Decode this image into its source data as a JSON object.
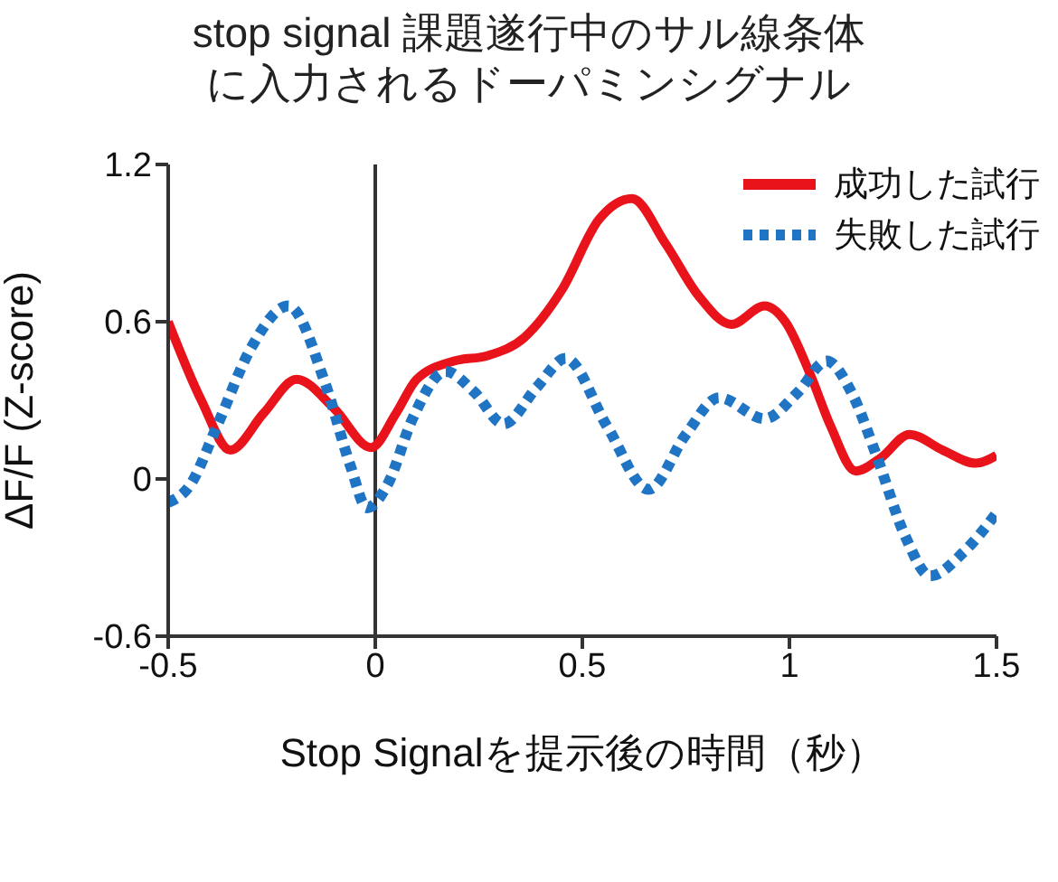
{
  "chart_data": {
    "type": "line",
    "title": "stop signal 課題遂行中のサル線条体に入力されるドーパミンシグナル",
    "xlabel": "Stop Signalを提示後の時間（秒）",
    "ylabel": "ΔF/F (Z-score)",
    "xlim": [
      -0.5,
      1.5
    ],
    "xticks": [
      -0.5,
      0,
      0.5,
      1,
      1.5
    ],
    "ylim": [
      -0.6,
      1.2
    ],
    "yticks": [
      -0.6,
      0,
      0.6,
      1.2
    ],
    "grid": false,
    "legend": "top right",
    "marker": "none",
    "ref_lines": [
      {
        "axis": "x",
        "value": 0,
        "color": "#333333"
      }
    ],
    "series": [
      {
        "name": "成功した試行",
        "color": "#e8131b",
        "line_style": "solid",
        "x": [
          -0.5,
          -0.42,
          -0.35,
          -0.27,
          -0.19,
          -0.1,
          -0.01,
          0.05,
          0.1,
          0.19,
          0.27,
          0.36,
          0.45,
          0.54,
          0.62,
          0.7,
          0.78,
          0.86,
          0.94,
          0.99,
          1.05,
          1.1,
          1.16,
          1.22,
          1.29,
          1.37,
          1.45,
          1.5
        ],
        "values": [
          0.6,
          0.3,
          0.11,
          0.25,
          0.38,
          0.27,
          0.12,
          0.25,
          0.38,
          0.45,
          0.47,
          0.54,
          0.72,
          0.99,
          1.07,
          0.9,
          0.7,
          0.59,
          0.66,
          0.6,
          0.4,
          0.2,
          0.03,
          0.08,
          0.17,
          0.11,
          0.06,
          0.09
        ]
      },
      {
        "name": "失敗した試行",
        "color": "#1f74c4",
        "line_style": "dotted",
        "x": [
          -0.5,
          -0.45,
          -0.38,
          -0.3,
          -0.21,
          -0.12,
          -0.06,
          -0.02,
          0.03,
          0.09,
          0.17,
          0.24,
          0.31,
          0.39,
          0.46,
          0.56,
          0.66,
          0.75,
          0.83,
          0.94,
          1.02,
          1.09,
          1.15,
          1.21,
          1.28,
          1.34,
          1.42,
          1.5
        ],
        "values": [
          -0.09,
          -0.03,
          0.21,
          0.5,
          0.66,
          0.36,
          0.05,
          -0.11,
          -0.02,
          0.23,
          0.41,
          0.33,
          0.21,
          0.35,
          0.46,
          0.2,
          -0.04,
          0.17,
          0.31,
          0.23,
          0.33,
          0.45,
          0.33,
          0.09,
          -0.22,
          -0.37,
          -0.28,
          -0.13
        ]
      }
    ]
  }
}
